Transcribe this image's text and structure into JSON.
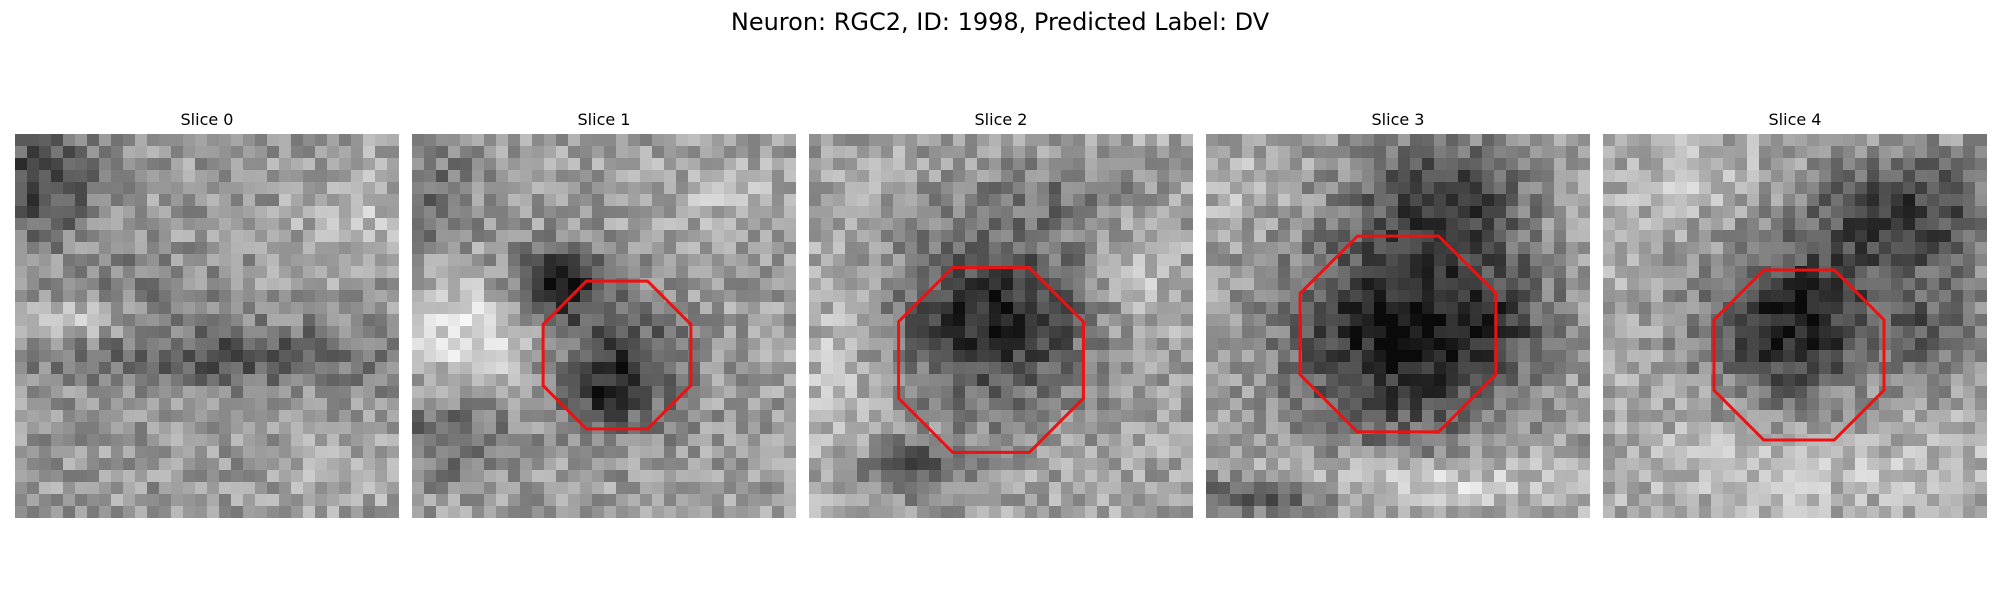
{
  "figure": {
    "title": "Neuron: RGC2, ID: 1998, Predicted Label: DV"
  },
  "slices": [
    {
      "label": "Slice 0",
      "has_contour": false
    },
    {
      "label": "Slice 1",
      "has_contour": true
    },
    {
      "label": "Slice 2",
      "has_contour": true
    },
    {
      "label": "Slice 3",
      "has_contour": true
    },
    {
      "label": "Slice 4",
      "has_contour": true
    }
  ],
  "colors": {
    "contour": "#ee1111",
    "background": "#ffffff"
  }
}
